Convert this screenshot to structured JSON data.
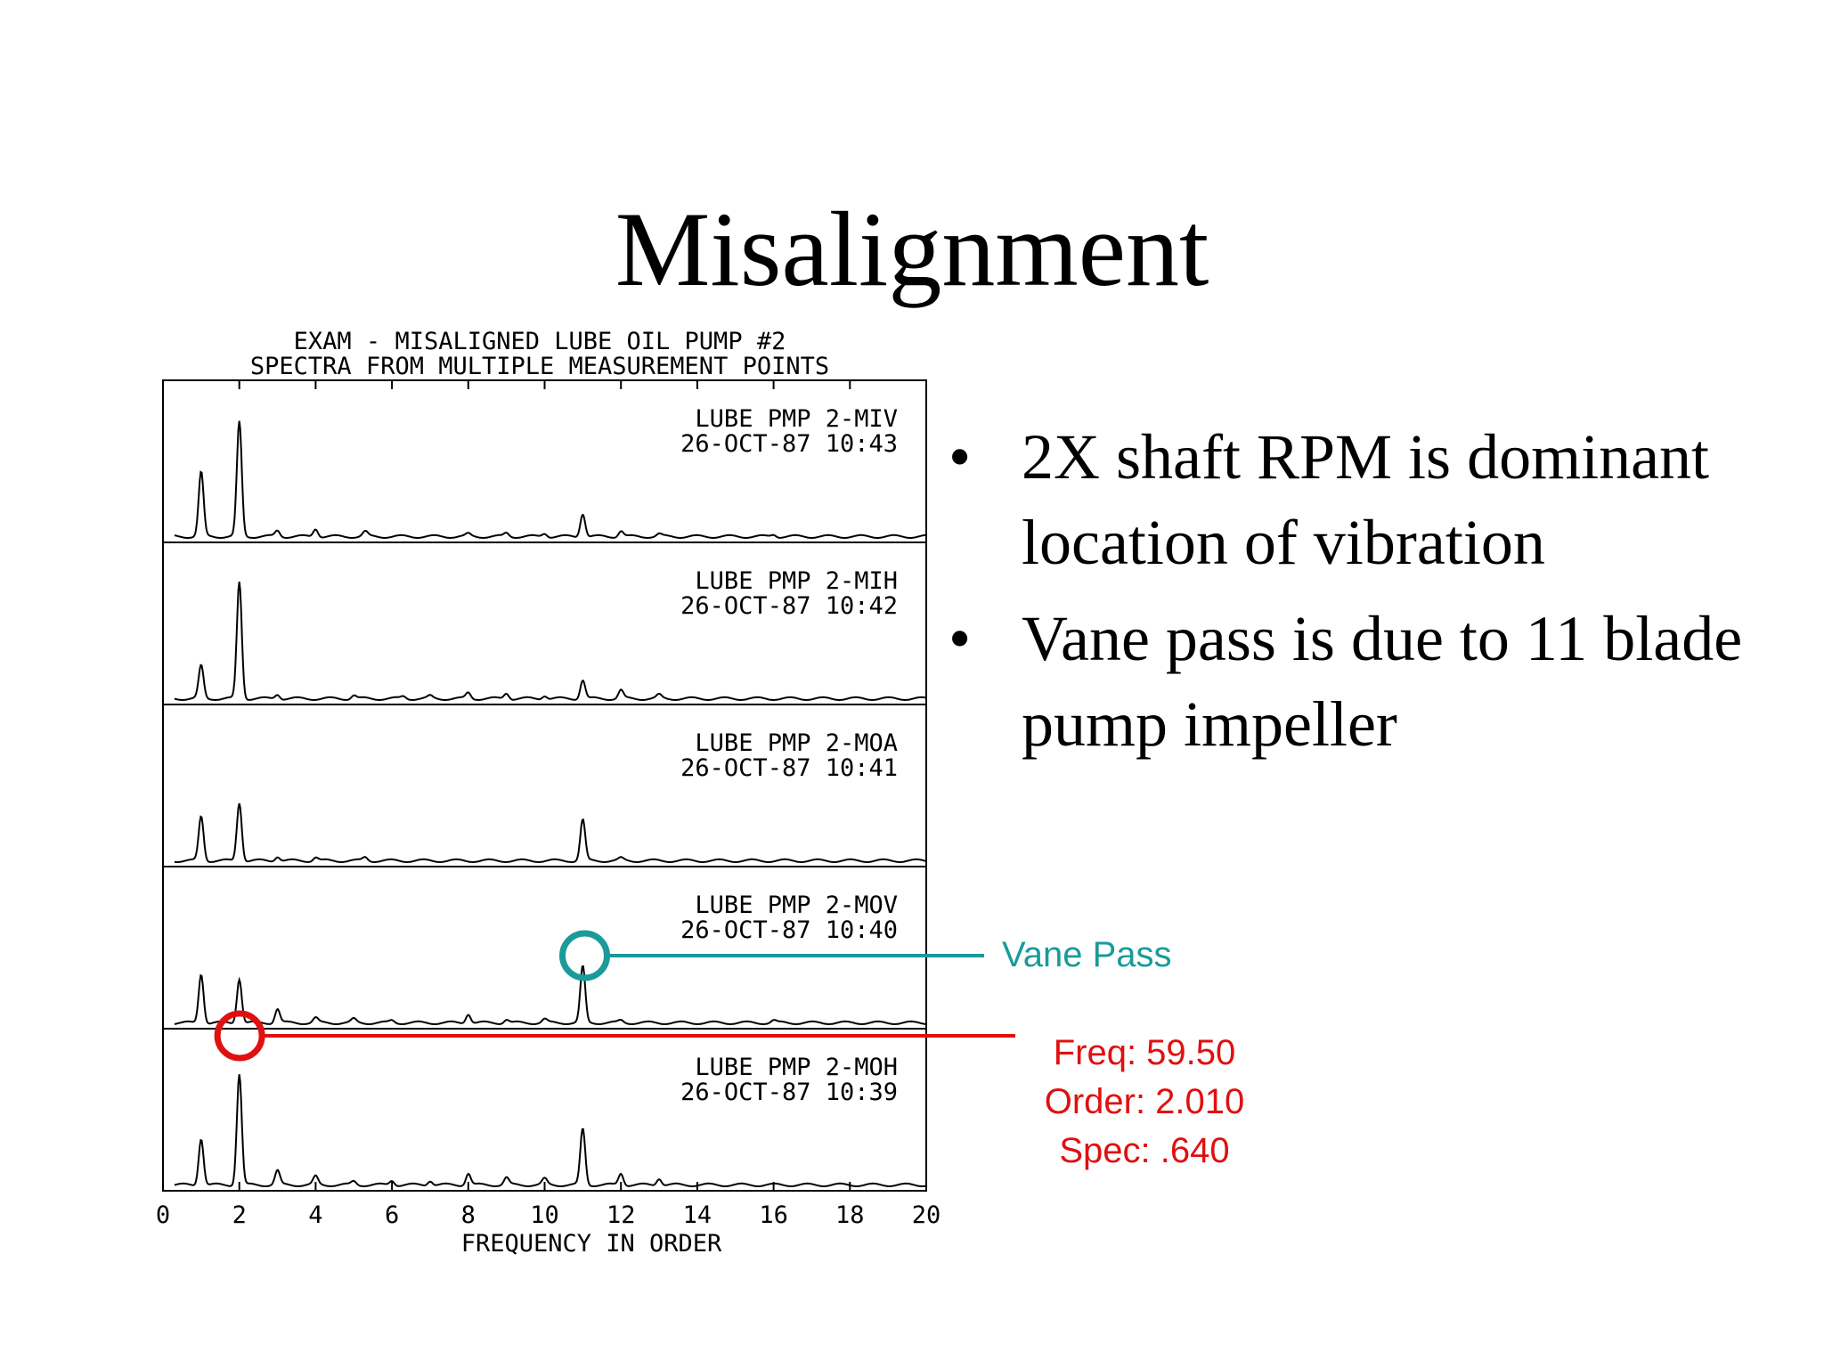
{
  "slide": {
    "title": "Misalignment"
  },
  "bullets": [
    {
      "text": "2X shaft RPM is dominant location of vibration"
    },
    {
      "text": "Vane pass is due to 11 blade pump impeller"
    }
  ],
  "callouts": {
    "vane_pass": "Vane Pass",
    "readout": {
      "freq": "Freq: 59.50",
      "order": "Order: 2.010",
      "spec": "Spec: .640"
    },
    "colors": {
      "vane": "#1a9a9a",
      "cursor": "#e01010"
    }
  },
  "chart_data": {
    "type": "line",
    "title": "EXAM - MISALIGNED LUBE OIL PUMP #2",
    "subtitle": "SPECTRA FROM MULTIPLE MEASUREMENT POINTS",
    "xlabel": "FREQUENCY IN ORDER",
    "xlim": [
      0,
      20
    ],
    "xticks": [
      "0",
      "2",
      "4",
      "6",
      "8",
      "10",
      "12",
      "14",
      "16",
      "18",
      "20"
    ],
    "grid": false,
    "panels": [
      {
        "label": "LUBE PMP 2-MIV",
        "date": "26-OCT-87",
        "time": "10:43",
        "peaks": [
          [
            1,
            0.55
          ],
          [
            2,
            0.98
          ],
          [
            3,
            0.05
          ],
          [
            4,
            0.07
          ],
          [
            5.3,
            0.04
          ],
          [
            8,
            0.02
          ],
          [
            9,
            0.03
          ],
          [
            10,
            0.03
          ],
          [
            11,
            0.2
          ],
          [
            12,
            0.05
          ],
          [
            13,
            0.02
          ],
          [
            16,
            0.02
          ]
        ]
      },
      {
        "label": "LUBE PMP 2-MIH",
        "date": "26-OCT-87",
        "time": "10:42",
        "peaks": [
          [
            1,
            0.28
          ],
          [
            2,
            1.0
          ],
          [
            3,
            0.04
          ],
          [
            5,
            0.03
          ],
          [
            6.3,
            0.02
          ],
          [
            7,
            0.02
          ],
          [
            8,
            0.05
          ],
          [
            9,
            0.05
          ],
          [
            10,
            0.03
          ],
          [
            11,
            0.16
          ],
          [
            12,
            0.07
          ],
          [
            13,
            0.03
          ]
        ]
      },
      {
        "label": "LUBE PMP 2-MOA",
        "date": "26-OCT-87",
        "time": "10:41",
        "peaks": [
          [
            1,
            0.38
          ],
          [
            2,
            0.5
          ],
          [
            3,
            0.04
          ],
          [
            4,
            0.03
          ],
          [
            5.3,
            0.03
          ],
          [
            11,
            0.35
          ],
          [
            12,
            0.02
          ]
        ]
      },
      {
        "label": "LUBE PMP 2-MOV",
        "date": "26-OCT-87",
        "time": "10:40",
        "peaks": [
          [
            1,
            0.42
          ],
          [
            2,
            0.38
          ],
          [
            3,
            0.12
          ],
          [
            4,
            0.04
          ],
          [
            5,
            0.03
          ],
          [
            6,
            0.02
          ],
          [
            8,
            0.08
          ],
          [
            9,
            0.03
          ],
          [
            10,
            0.03
          ],
          [
            11,
            0.48
          ],
          [
            12,
            0.02
          ],
          [
            16,
            0.02
          ]
        ]
      },
      {
        "label": "LUBE PMP 2-MOH",
        "date": "26-OCT-87",
        "time": "10:39",
        "peaks": [
          [
            1,
            0.4
          ],
          [
            2,
            0.95
          ],
          [
            3,
            0.12
          ],
          [
            4,
            0.07
          ],
          [
            5,
            0.03
          ],
          [
            6,
            0.04
          ],
          [
            7,
            0.04
          ],
          [
            8,
            0.1
          ],
          [
            9,
            0.06
          ],
          [
            10,
            0.05
          ],
          [
            11,
            0.48
          ],
          [
            12,
            0.1
          ],
          [
            13,
            0.06
          ]
        ]
      }
    ]
  }
}
